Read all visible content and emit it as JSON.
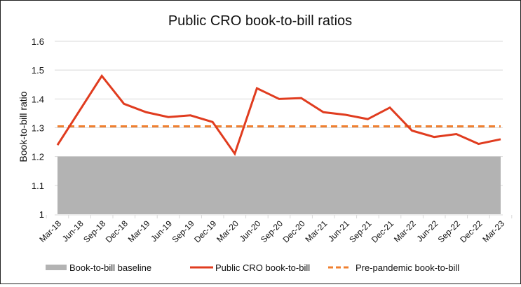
{
  "chart_data": {
    "type": "line",
    "title": "Public CRO book-to-bill ratios",
    "xlabel": "",
    "ylabel": "Book-to-bill ratio",
    "ylim": [
      1,
      1.6
    ],
    "yticks": [
      "1",
      "1.1",
      "1.2",
      "1.3",
      "1.4",
      "1.5",
      "1.6"
    ],
    "ytick_values": [
      1,
      1.1,
      1.2,
      1.3,
      1.4,
      1.5,
      1.6
    ],
    "grid": true,
    "legend_position": "bottom",
    "categories": [
      "Mar-18",
      "Jun-18",
      "Sep-18",
      "Dec-18",
      "Mar-19",
      "Jun-19",
      "Sep-19",
      "Dec-19",
      "Mar-20",
      "Jun-20",
      "Sep-20",
      "Dec-20",
      "Mar-21",
      "Jun-21",
      "Sep-21",
      "Dec-21",
      "Mar-22",
      "Jun-22",
      "Sep-22",
      "Dec-22",
      "Mar-23"
    ],
    "series": [
      {
        "name": "Book-to-bill baseline",
        "kind": "area",
        "color": "#b3b3b3",
        "values": [
          1.2,
          1.2,
          1.2,
          1.2,
          1.2,
          1.2,
          1.2,
          1.2,
          1.2,
          1.2,
          1.2,
          1.2,
          1.2,
          1.2,
          1.2,
          1.2,
          1.2,
          1.2,
          1.2,
          1.2,
          1.2
        ]
      },
      {
        "name": "Public CRO book-to-bill",
        "kind": "line",
        "color": "#e03c1f",
        "values": [
          1.24,
          1.36,
          1.48,
          1.383,
          1.354,
          1.337,
          1.343,
          1.32,
          1.21,
          1.437,
          1.4,
          1.403,
          1.354,
          1.345,
          1.33,
          1.37,
          1.29,
          1.268,
          1.278,
          1.244,
          1.26
        ]
      },
      {
        "name": "Pre-pandemic book-to-bill",
        "kind": "dashed-line",
        "color": "#f08030",
        "values": [
          1.305,
          1.305,
          1.305,
          1.305,
          1.305,
          1.305,
          1.305,
          1.305,
          1.305,
          1.305,
          1.305,
          1.305,
          1.305,
          1.305,
          1.305,
          1.305,
          1.305,
          1.305,
          1.305,
          1.305,
          1.305
        ]
      }
    ]
  }
}
